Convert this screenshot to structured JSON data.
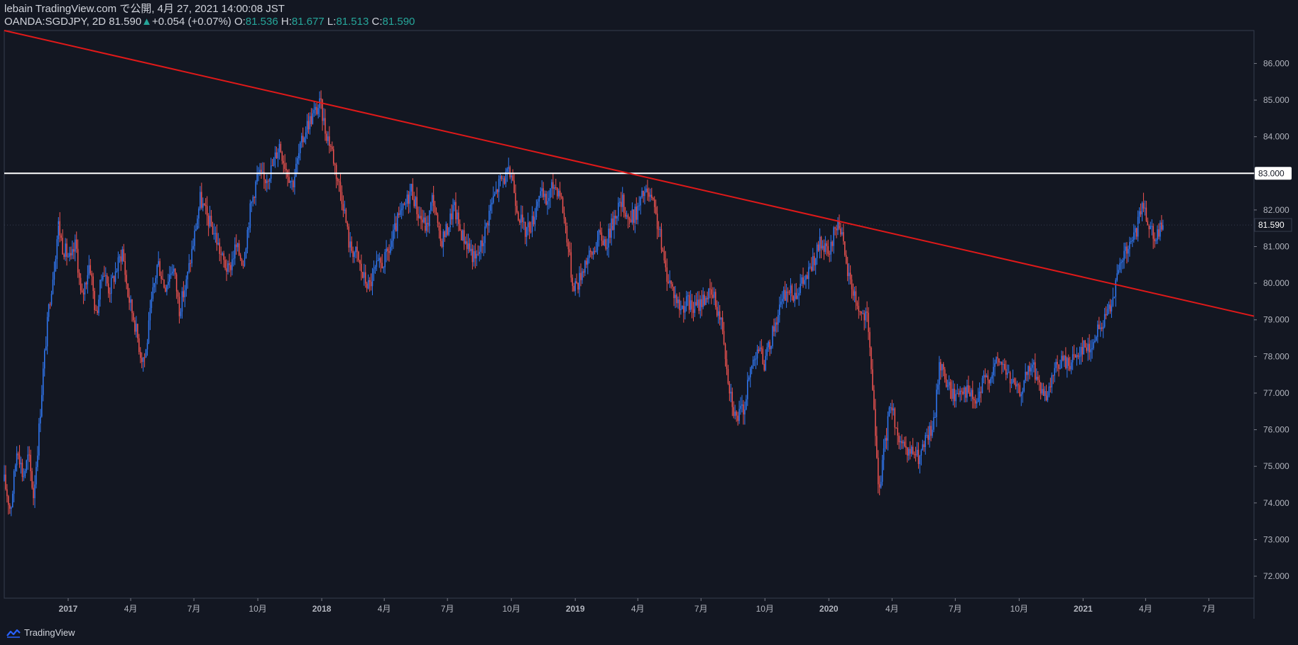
{
  "header": {
    "publisher_line": "lebain TradingView.com で公開, 4月 27, 2021 14:00:08 JST",
    "symbol": "OANDA:SGDJPY, 2D",
    "last": "81.590",
    "change": "+0.054 (+0.07%)",
    "open_label": "O:",
    "open": "81.536",
    "high_label": "H:",
    "high": "81.677",
    "low_label": "L:",
    "low": "81.513",
    "close_label": "C:",
    "close": "81.590"
  },
  "footer": {
    "brand": "TradingView"
  },
  "colors": {
    "background": "#131722",
    "bull": "#3179f5",
    "bear": "#ef5350",
    "trendline": "#e01919",
    "level": "#ffffff",
    "up_text": "#26a69a"
  },
  "chart_data": {
    "type": "candlestick",
    "title": "OANDA:SGDJPY, 2D",
    "ylim": [
      71.4,
      86.9
    ],
    "y_ticks": [
      "72.000",
      "73.000",
      "74.000",
      "75.000",
      "76.000",
      "77.000",
      "78.000",
      "79.000",
      "80.000",
      "81.000",
      "82.000",
      "83.000",
      "84.000",
      "85.000",
      "86.000"
    ],
    "x_range": [
      "2016-10-01",
      "2021-09-04"
    ],
    "x_ticks": [
      {
        "date": "2017-01-01",
        "label": "2017",
        "bold": true
      },
      {
        "date": "2017-04-01",
        "label": "4月"
      },
      {
        "date": "2017-07-01",
        "label": "7月"
      },
      {
        "date": "2017-10-01",
        "label": "10月"
      },
      {
        "date": "2018-01-01",
        "label": "2018",
        "bold": true
      },
      {
        "date": "2018-04-01",
        "label": "4月"
      },
      {
        "date": "2018-07-01",
        "label": "7月"
      },
      {
        "date": "2018-10-01",
        "label": "10月"
      },
      {
        "date": "2019-01-01",
        "label": "2019",
        "bold": true
      },
      {
        "date": "2019-04-01",
        "label": "4月"
      },
      {
        "date": "2019-07-01",
        "label": "7月"
      },
      {
        "date": "2019-10-01",
        "label": "10月"
      },
      {
        "date": "2020-01-01",
        "label": "2020",
        "bold": true
      },
      {
        "date": "2020-04-01",
        "label": "4月"
      },
      {
        "date": "2020-07-01",
        "label": "7月"
      },
      {
        "date": "2020-10-01",
        "label": "10月"
      },
      {
        "date": "2021-01-01",
        "label": "2021",
        "bold": true
      },
      {
        "date": "2021-04-01",
        "label": "4月"
      },
      {
        "date": "2021-07-01",
        "label": "7月"
      }
    ],
    "closes": [
      {
        "date": "2016-10-01",
        "value": 74.6
      },
      {
        "date": "2016-10-10",
        "value": 73.8
      },
      {
        "date": "2016-10-20",
        "value": 75.6
      },
      {
        "date": "2016-10-28",
        "value": 74.7
      },
      {
        "date": "2016-11-05",
        "value": 75.3
      },
      {
        "date": "2016-11-12",
        "value": 74.2
      },
      {
        "date": "2016-11-18",
        "value": 75.5
      },
      {
        "date": "2016-11-26",
        "value": 77.6
      },
      {
        "date": "2016-12-05",
        "value": 79.5
      },
      {
        "date": "2016-12-12",
        "value": 80.5
      },
      {
        "date": "2016-12-18",
        "value": 81.6
      },
      {
        "date": "2016-12-24",
        "value": 81.0
      },
      {
        "date": "2017-01-05",
        "value": 80.6
      },
      {
        "date": "2017-01-12",
        "value": 81.1
      },
      {
        "date": "2017-01-20",
        "value": 79.5
      },
      {
        "date": "2017-02-01",
        "value": 80.6
      },
      {
        "date": "2017-02-10",
        "value": 79.1
      },
      {
        "date": "2017-02-20",
        "value": 80.4
      },
      {
        "date": "2017-03-01",
        "value": 79.8
      },
      {
        "date": "2017-03-10",
        "value": 80.3
      },
      {
        "date": "2017-03-20",
        "value": 80.9
      },
      {
        "date": "2017-03-28",
        "value": 79.7
      },
      {
        "date": "2017-04-06",
        "value": 79.0
      },
      {
        "date": "2017-04-16",
        "value": 78.0
      },
      {
        "date": "2017-04-22",
        "value": 78.0
      },
      {
        "date": "2017-05-02",
        "value": 79.6
      },
      {
        "date": "2017-05-10",
        "value": 80.6
      },
      {
        "date": "2017-05-20",
        "value": 79.9
      },
      {
        "date": "2017-06-01",
        "value": 80.5
      },
      {
        "date": "2017-06-10",
        "value": 79.3
      },
      {
        "date": "2017-06-20",
        "value": 80.0
      },
      {
        "date": "2017-07-01",
        "value": 81.2
      },
      {
        "date": "2017-07-10",
        "value": 82.3
      },
      {
        "date": "2017-07-20",
        "value": 81.8
      },
      {
        "date": "2017-08-01",
        "value": 81.3
      },
      {
        "date": "2017-08-10",
        "value": 80.7
      },
      {
        "date": "2017-08-20",
        "value": 80.3
      },
      {
        "date": "2017-08-30",
        "value": 81.0
      },
      {
        "date": "2017-09-10",
        "value": 80.6
      },
      {
        "date": "2017-09-20",
        "value": 82.0
      },
      {
        "date": "2017-10-01",
        "value": 83.0
      },
      {
        "date": "2017-10-10",
        "value": 82.8
      },
      {
        "date": "2017-10-20",
        "value": 83.1
      },
      {
        "date": "2017-11-01",
        "value": 83.8
      },
      {
        "date": "2017-11-10",
        "value": 83.2
      },
      {
        "date": "2017-11-20",
        "value": 82.7
      },
      {
        "date": "2017-11-30",
        "value": 83.6
      },
      {
        "date": "2017-12-10",
        "value": 84.3
      },
      {
        "date": "2017-12-20",
        "value": 84.6
      },
      {
        "date": "2017-12-30",
        "value": 84.9
      },
      {
        "date": "2018-01-06",
        "value": 84.2
      },
      {
        "date": "2018-01-15",
        "value": 83.7
      },
      {
        "date": "2018-01-22",
        "value": 83.0
      },
      {
        "date": "2018-02-01",
        "value": 82.2
      },
      {
        "date": "2018-02-10",
        "value": 81.0
      },
      {
        "date": "2018-02-20",
        "value": 80.8
      },
      {
        "date": "2018-03-01",
        "value": 80.2
      },
      {
        "date": "2018-03-10",
        "value": 79.9
      },
      {
        "date": "2018-03-20",
        "value": 80.4
      },
      {
        "date": "2018-04-01",
        "value": 80.6
      },
      {
        "date": "2018-04-10",
        "value": 81.0
      },
      {
        "date": "2018-04-20",
        "value": 81.7
      },
      {
        "date": "2018-05-01",
        "value": 82.1
      },
      {
        "date": "2018-05-10",
        "value": 82.6
      },
      {
        "date": "2018-05-20",
        "value": 81.9
      },
      {
        "date": "2018-06-01",
        "value": 81.5
      },
      {
        "date": "2018-06-10",
        "value": 82.4
      },
      {
        "date": "2018-06-20",
        "value": 81.1
      },
      {
        "date": "2018-07-01",
        "value": 81.5
      },
      {
        "date": "2018-07-10",
        "value": 82.1
      },
      {
        "date": "2018-07-20",
        "value": 81.4
      },
      {
        "date": "2018-08-01",
        "value": 81.0
      },
      {
        "date": "2018-08-10",
        "value": 80.6
      },
      {
        "date": "2018-08-20",
        "value": 81.1
      },
      {
        "date": "2018-09-01",
        "value": 82.1
      },
      {
        "date": "2018-09-15",
        "value": 82.8
      },
      {
        "date": "2018-10-01",
        "value": 83.0
      },
      {
        "date": "2018-10-10",
        "value": 82.0
      },
      {
        "date": "2018-10-20",
        "value": 81.4
      },
      {
        "date": "2018-11-01",
        "value": 81.7
      },
      {
        "date": "2018-11-10",
        "value": 82.5
      },
      {
        "date": "2018-11-20",
        "value": 82.2
      },
      {
        "date": "2018-12-01",
        "value": 82.7
      },
      {
        "date": "2018-12-10",
        "value": 82.5
      },
      {
        "date": "2018-12-20",
        "value": 81.3
      },
      {
        "date": "2018-12-28",
        "value": 80.0
      },
      {
        "date": "2019-01-05",
        "value": 80.0
      },
      {
        "date": "2019-01-15",
        "value": 80.6
      },
      {
        "date": "2019-01-25",
        "value": 80.8
      },
      {
        "date": "2019-02-05",
        "value": 81.3
      },
      {
        "date": "2019-02-15",
        "value": 81.1
      },
      {
        "date": "2019-03-01",
        "value": 82.0
      },
      {
        "date": "2019-03-10",
        "value": 82.2
      },
      {
        "date": "2019-03-20",
        "value": 81.7
      },
      {
        "date": "2019-04-01",
        "value": 82.0
      },
      {
        "date": "2019-04-10",
        "value": 82.5
      },
      {
        "date": "2019-04-20",
        "value": 82.3
      },
      {
        "date": "2019-05-01",
        "value": 81.5
      },
      {
        "date": "2019-05-10",
        "value": 80.4
      },
      {
        "date": "2019-05-20",
        "value": 79.9
      },
      {
        "date": "2019-06-01",
        "value": 79.3
      },
      {
        "date": "2019-06-10",
        "value": 79.5
      },
      {
        "date": "2019-06-20",
        "value": 79.3
      },
      {
        "date": "2019-07-01",
        "value": 79.5
      },
      {
        "date": "2019-07-10",
        "value": 79.7
      },
      {
        "date": "2019-07-20",
        "value": 79.6
      },
      {
        "date": "2019-08-01",
        "value": 78.8
      },
      {
        "date": "2019-08-10",
        "value": 77.3
      },
      {
        "date": "2019-08-20",
        "value": 76.3
      },
      {
        "date": "2019-09-01",
        "value": 76.6
      },
      {
        "date": "2019-09-10",
        "value": 77.6
      },
      {
        "date": "2019-09-20",
        "value": 78.3
      },
      {
        "date": "2019-10-01",
        "value": 77.8
      },
      {
        "date": "2019-10-10",
        "value": 78.5
      },
      {
        "date": "2019-10-20",
        "value": 79.2
      },
      {
        "date": "2019-11-01",
        "value": 79.8
      },
      {
        "date": "2019-11-10",
        "value": 79.7
      },
      {
        "date": "2019-11-20",
        "value": 79.9
      },
      {
        "date": "2019-12-01",
        "value": 80.2
      },
      {
        "date": "2019-12-10",
        "value": 80.6
      },
      {
        "date": "2019-12-20",
        "value": 81.1
      },
      {
        "date": "2020-01-01",
        "value": 80.7
      },
      {
        "date": "2020-01-10",
        "value": 81.5
      },
      {
        "date": "2020-01-17",
        "value": 81.7
      },
      {
        "date": "2020-01-25",
        "value": 80.5
      },
      {
        "date": "2020-02-05",
        "value": 79.8
      },
      {
        "date": "2020-02-15",
        "value": 79.2
      },
      {
        "date": "2020-02-25",
        "value": 79.0
      },
      {
        "date": "2020-03-05",
        "value": 77.0
      },
      {
        "date": "2020-03-12",
        "value": 74.3
      },
      {
        "date": "2020-03-20",
        "value": 75.3
      },
      {
        "date": "2020-03-30",
        "value": 76.8
      },
      {
        "date": "2020-04-10",
        "value": 75.8
      },
      {
        "date": "2020-04-20",
        "value": 75.3
      },
      {
        "date": "2020-05-01",
        "value": 75.4
      },
      {
        "date": "2020-05-10",
        "value": 75.2
      },
      {
        "date": "2020-05-20",
        "value": 75.7
      },
      {
        "date": "2020-06-01",
        "value": 76.2
      },
      {
        "date": "2020-06-08",
        "value": 77.9
      },
      {
        "date": "2020-06-20",
        "value": 77.2
      },
      {
        "date": "2020-07-01",
        "value": 76.9
      },
      {
        "date": "2020-07-10",
        "value": 77.2
      },
      {
        "date": "2020-07-20",
        "value": 77.0
      },
      {
        "date": "2020-08-01",
        "value": 76.7
      },
      {
        "date": "2020-08-10",
        "value": 77.3
      },
      {
        "date": "2020-08-20",
        "value": 77.5
      },
      {
        "date": "2020-09-01",
        "value": 77.9
      },
      {
        "date": "2020-09-10",
        "value": 77.7
      },
      {
        "date": "2020-09-20",
        "value": 77.3
      },
      {
        "date": "2020-10-01",
        "value": 77.0
      },
      {
        "date": "2020-10-10",
        "value": 77.4
      },
      {
        "date": "2020-10-20",
        "value": 77.8
      },
      {
        "date": "2020-11-01",
        "value": 77.1
      },
      {
        "date": "2020-11-10",
        "value": 76.7
      },
      {
        "date": "2020-11-20",
        "value": 77.6
      },
      {
        "date": "2020-12-01",
        "value": 77.9
      },
      {
        "date": "2020-12-10",
        "value": 77.8
      },
      {
        "date": "2020-12-20",
        "value": 78.0
      },
      {
        "date": "2021-01-01",
        "value": 78.3
      },
      {
        "date": "2021-01-10",
        "value": 78.2
      },
      {
        "date": "2021-01-20",
        "value": 78.6
      },
      {
        "date": "2021-02-01",
        "value": 79.0
      },
      {
        "date": "2021-02-10",
        "value": 79.5
      },
      {
        "date": "2021-02-20",
        "value": 80.2
      },
      {
        "date": "2021-03-01",
        "value": 80.8
      },
      {
        "date": "2021-03-10",
        "value": 81.0
      },
      {
        "date": "2021-03-20",
        "value": 81.5
      },
      {
        "date": "2021-03-28",
        "value": 82.2
      },
      {
        "date": "2021-04-05",
        "value": 81.7
      },
      {
        "date": "2021-04-15",
        "value": 81.3
      },
      {
        "date": "2021-04-27",
        "value": 81.59
      }
    ],
    "trendline": {
      "points": [
        {
          "date": "2016-10-01",
          "value": 86.9
        },
        {
          "date": "2021-09-04",
          "value": 79.1
        }
      ],
      "color": "#e01919"
    },
    "horizontal_line": {
      "value": 83.0,
      "label": "83.000",
      "color": "#ffffff"
    },
    "last_price": {
      "value": 81.59,
      "label": "81.590"
    }
  }
}
